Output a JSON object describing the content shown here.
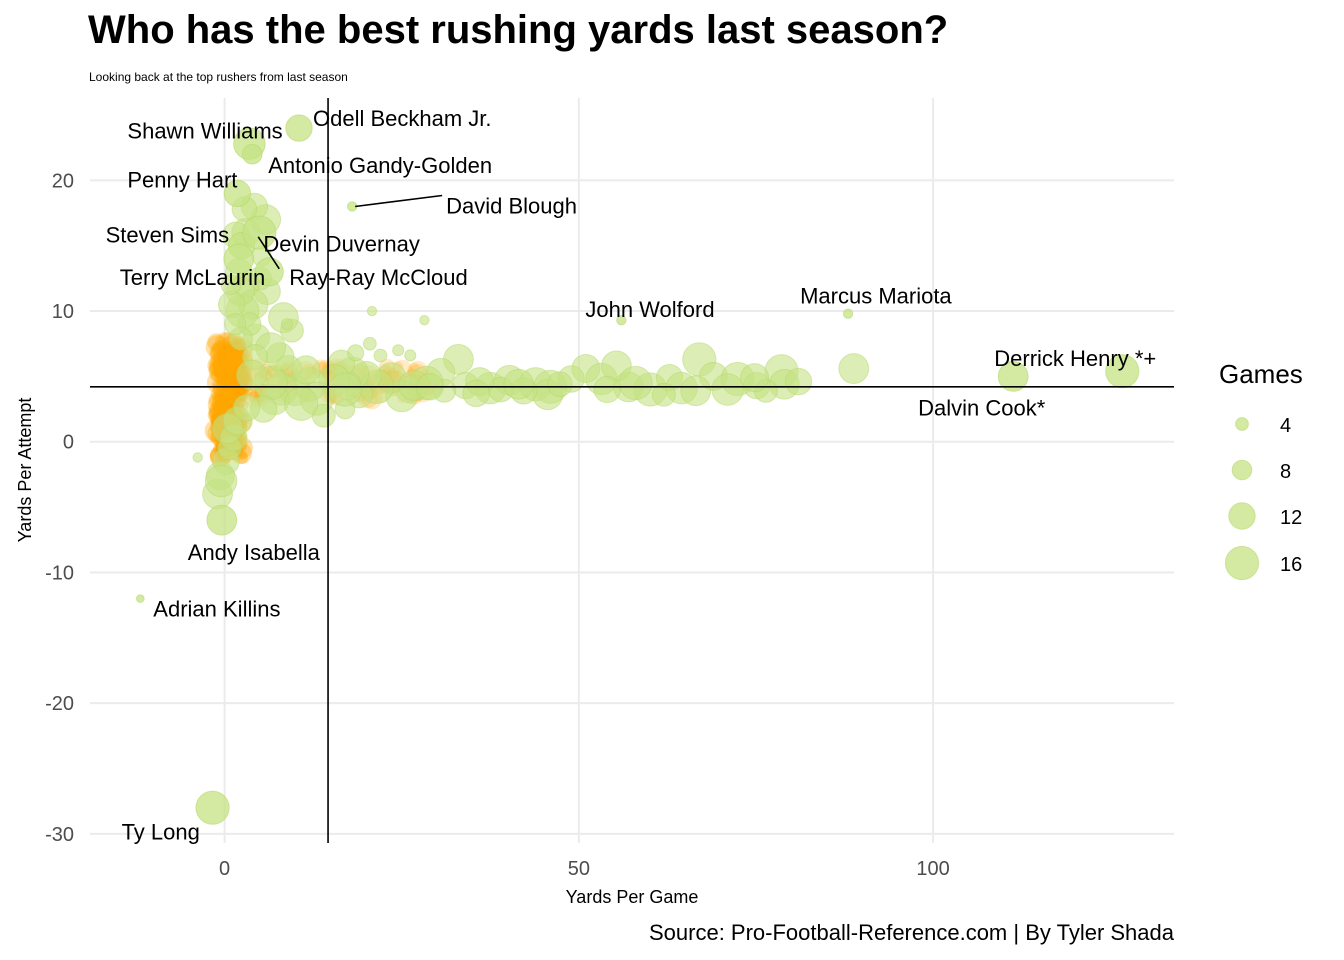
{
  "chart_data": {
    "type": "scatter",
    "title": "Who has the best rushing yards last season?",
    "subtitle": "Looking back at the top rushers from last season",
    "caption": "Source: Pro-Football-Reference.com | By Tyler Shada",
    "xlabel": "Yards Per Game",
    "ylabel": "Yards Per Attempt",
    "xlim": [
      -19,
      134
    ],
    "ylim": [
      -30.7,
      26.3
    ],
    "x_ticks": [
      0,
      50,
      100
    ],
    "y_ticks": [
      20,
      10,
      0,
      -10,
      -20,
      -30
    ],
    "grid": true,
    "reference_lines": {
      "x": 14.6,
      "y": 4.2
    },
    "size_legend": {
      "title": "Games",
      "values": [
        4,
        8,
        12,
        16
      ],
      "position": "right"
    },
    "colors": {
      "point_fill": "#c5e384",
      "point_dense": "#ffa500",
      "grid": "#ebebeb",
      "refline": "#000000"
    },
    "labeled_points": [
      {
        "name": "Shawn Williams",
        "x": 3.5,
        "y": 22.8,
        "games": 15
      },
      {
        "name": "Odell Beckham Jr.",
        "x": 10.5,
        "y": 24.0,
        "games": 12
      },
      {
        "name": "Antonio Gandy-Golden",
        "x": 3.9,
        "y": 22.0,
        "games": 8
      },
      {
        "name": "Penny Hart",
        "x": 1.8,
        "y": 19.0,
        "games": 12
      },
      {
        "name": "David Blough",
        "x": 18.0,
        "y": 18.0,
        "games": 2
      },
      {
        "name": "Steven Sims",
        "x": 2.4,
        "y": 15.0,
        "games": 12
      },
      {
        "name": "Devin Duvernay",
        "x": 4.9,
        "y": 16.0,
        "games": 16
      },
      {
        "name": "Terry McLaurin",
        "x": 2.0,
        "y": 14.0,
        "games": 14
      },
      {
        "name": "Ray-Ray McCloud",
        "x": 6.3,
        "y": 13.0,
        "games": 13
      },
      {
        "name": "John Wolford",
        "x": 56.0,
        "y": 9.3,
        "games": 2
      },
      {
        "name": "Marcus Mariota",
        "x": 88.0,
        "y": 9.8,
        "games": 2
      },
      {
        "name": "Derrick Henry *+",
        "x": 126.7,
        "y": 5.4,
        "games": 16
      },
      {
        "name": "Dalvin Cook*",
        "x": 111.3,
        "y": 5.0,
        "games": 14
      },
      {
        "name": "Andy Isabella",
        "x": -0.4,
        "y": -6.0,
        "games": 14
      },
      {
        "name": "Adrian Killins",
        "x": -11.9,
        "y": -12.0,
        "games": 1
      },
      {
        "name": "Ty Long",
        "x": -1.7,
        "y": -28.0,
        "games": 16
      }
    ],
    "other_points": [
      [
        37.5,
        4.1,
        15
      ],
      [
        40.2,
        4.7,
        14
      ],
      [
        43.9,
        4.4,
        16
      ],
      [
        51.0,
        5.6,
        13
      ],
      [
        53.2,
        4.8,
        15
      ],
      [
        57.0,
        4.2,
        14
      ],
      [
        60.1,
        4.0,
        16
      ],
      [
        62.8,
        4.9,
        12
      ],
      [
        64.5,
        4.1,
        15
      ],
      [
        67.0,
        6.3,
        16
      ],
      [
        69.0,
        5.0,
        13
      ],
      [
        72.4,
        4.8,
        16
      ],
      [
        75.1,
        4.3,
        12
      ],
      [
        78.6,
        5.4,
        16
      ],
      [
        66.5,
        3.9,
        14
      ],
      [
        46.0,
        4.2,
        16
      ],
      [
        34.0,
        4.3,
        12
      ],
      [
        33.0,
        6.3,
        14
      ],
      [
        30.5,
        5.3,
        13
      ],
      [
        48.9,
        4.8,
        12
      ],
      [
        55.3,
        5.8,
        14
      ],
      [
        71.0,
        4.0,
        15
      ],
      [
        79.0,
        4.4,
        14
      ],
      [
        88.8,
        5.6,
        14
      ],
      [
        76.4,
        3.9,
        10
      ],
      [
        58.0,
        4.5,
        16
      ],
      [
        45.6,
        3.6,
        14
      ],
      [
        42.2,
        3.9,
        12
      ],
      [
        39.0,
        4.0,
        11
      ],
      [
        36.0,
        4.6,
        13
      ],
      [
        31.0,
        3.9,
        10
      ],
      [
        28.5,
        4.5,
        16
      ],
      [
        26.0,
        4.0,
        12
      ],
      [
        25.0,
        3.5,
        15
      ],
      [
        23.5,
        4.9,
        14
      ],
      [
        21.5,
        4.2,
        16
      ],
      [
        20.0,
        5.0,
        14
      ],
      [
        19.0,
        3.6,
        12
      ],
      [
        18.0,
        5.2,
        16
      ],
      [
        17.3,
        4.3,
        13
      ],
      [
        16.5,
        6.0,
        12
      ],
      [
        15.5,
        4.7,
        15
      ],
      [
        12.0,
        4.4,
        16
      ],
      [
        10.0,
        3.9,
        14
      ],
      [
        9.0,
        5.6,
        12
      ],
      [
        8.0,
        4.0,
        15
      ],
      [
        7.0,
        3.2,
        14
      ],
      [
        6.5,
        4.5,
        16
      ],
      [
        5.5,
        2.5,
        12
      ],
      [
        7.8,
        6.5,
        13
      ],
      [
        9.5,
        8.5,
        10
      ],
      [
        8.3,
        9.5,
        14
      ],
      [
        6.0,
        11.5,
        12
      ],
      [
        5.0,
        12.5,
        10
      ],
      [
        3.0,
        12.0,
        12
      ],
      [
        4.0,
        10.5,
        14
      ],
      [
        2.5,
        10.0,
        16
      ],
      [
        4.5,
        8.0,
        12
      ],
      [
        6.5,
        7.2,
        14
      ],
      [
        11.5,
        5.5,
        13
      ],
      [
        13.0,
        3.3,
        16
      ],
      [
        2.0,
        13.0,
        12
      ],
      [
        3.5,
        9.0,
        10
      ],
      [
        2.2,
        11.5,
        13
      ],
      [
        1.0,
        10.5,
        12
      ],
      [
        5.8,
        17.0,
        14
      ],
      [
        4.2,
        18.0,
        12
      ],
      [
        2.8,
        17.8,
        11
      ],
      [
        3.0,
        16.0,
        13
      ],
      [
        1.6,
        15.8,
        12
      ],
      [
        17.0,
        2.5,
        8
      ],
      [
        14.0,
        2.0,
        10
      ],
      [
        10.8,
        2.9,
        16
      ],
      [
        18.5,
        6.8,
        6
      ],
      [
        20.5,
        7.5,
        4
      ],
      [
        22.0,
        6.6,
        4
      ],
      [
        24.5,
        7.0,
        3
      ],
      [
        26.2,
        6.6,
        3
      ],
      [
        20.8,
        10.0,
        2
      ],
      [
        28.2,
        9.3,
        2
      ],
      [
        8.8,
        9.0,
        3
      ],
      [
        -3.8,
        -1.2,
        2
      ],
      [
        17.0,
        4.0,
        16
      ],
      [
        26.7,
        4.3,
        14
      ],
      [
        29.0,
        4.2,
        12
      ],
      [
        35.5,
        3.7,
        12
      ],
      [
        41.5,
        4.4,
        14
      ],
      [
        47.3,
        4.4,
        11
      ],
      [
        54.0,
        4.0,
        12
      ],
      [
        62.0,
        3.6,
        10
      ],
      [
        74.8,
        4.9,
        13
      ],
      [
        81.0,
        4.6,
        12
      ],
      [
        -1.0,
        -4.0,
        14
      ],
      [
        -0.6,
        -2.6,
        13
      ],
      [
        0.2,
        -1.5,
        12
      ],
      [
        -0.5,
        -3.0,
        15
      ],
      [
        0.7,
        -0.5,
        10
      ],
      [
        1.3,
        0.3,
        12
      ],
      [
        0.4,
        1.0,
        14
      ],
      [
        1.8,
        1.6,
        13
      ],
      [
        3.1,
        2.6,
        12
      ],
      [
        2.3,
        7.9,
        10
      ],
      [
        4.3,
        6.5,
        11
      ],
      [
        3.8,
        5.1,
        14
      ],
      [
        1.5,
        9.0,
        9
      ],
      [
        0.9,
        12.0,
        8
      ],
      [
        5.2,
        14.2,
        8
      ]
    ]
  }
}
